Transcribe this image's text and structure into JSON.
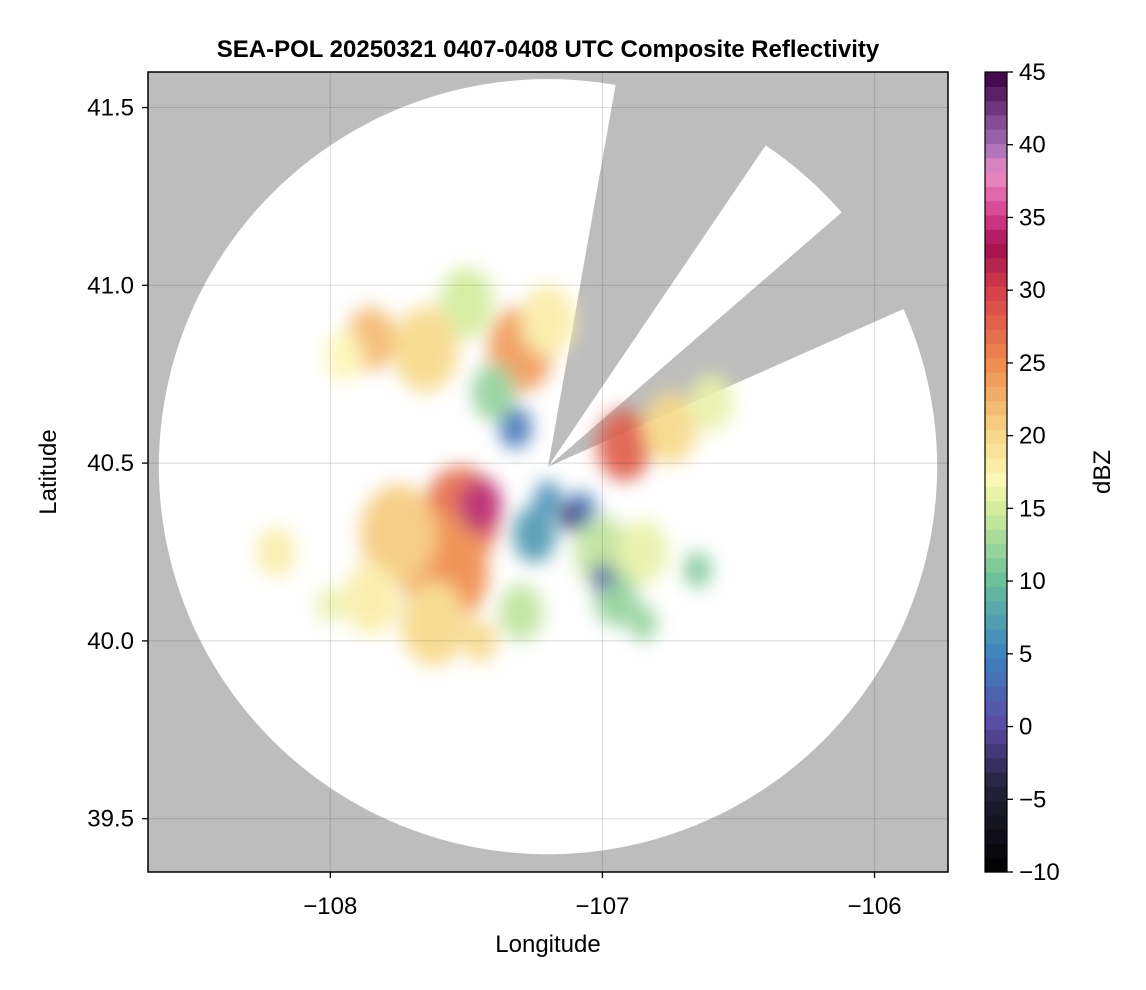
{
  "chart_data": {
    "type": "heatmap",
    "title": "SEA-POL 20250321 0407-0408 UTC Composite Reflectivity",
    "xlabel": "Longitude",
    "ylabel": "Latitude",
    "xlim": [
      -108.67,
      -105.73
    ],
    "ylim": [
      39.35,
      41.6
    ],
    "xticks": [
      -108,
      -107,
      -106
    ],
    "xtick_labels": [
      "−108",
      "−107",
      "−106"
    ],
    "yticks": [
      39.5,
      40.0,
      40.5,
      41.0,
      41.5
    ],
    "ytick_labels": [
      "39.5",
      "40.0",
      "40.5",
      "41.0",
      "41.5"
    ],
    "grid": true,
    "background_color": "#bdbdbd",
    "radar": {
      "center_lon": -107.2,
      "center_lat": 40.49,
      "range_lon": 1.43,
      "range_lat": 1.09,
      "blocked_sectors_deg": [
        [
          10,
          34
        ],
        [
          49,
          66
        ]
      ]
    },
    "colorbar": {
      "label": "dBZ",
      "min": -10,
      "max": 45,
      "step": 2,
      "ticks": [
        -10,
        -5,
        0,
        5,
        10,
        15,
        20,
        25,
        30,
        35,
        40,
        45
      ],
      "tick_labels": [
        "−10",
        "−5",
        "0",
        "5",
        "10",
        "15",
        "20",
        "25",
        "30",
        "35",
        "40",
        "45"
      ],
      "colormap": "spectral-reversed with dark purple top",
      "stops": [
        {
          "v": -10,
          "color": "#000000"
        },
        {
          "v": -4,
          "color": "#25233a"
        },
        {
          "v": 0,
          "color": "#5b4aa3"
        },
        {
          "v": 5,
          "color": "#3f82c0"
        },
        {
          "v": 10,
          "color": "#6abf9a"
        },
        {
          "v": 15,
          "color": "#d4ec9c"
        },
        {
          "v": 17,
          "color": "#fbf7b5"
        },
        {
          "v": 20,
          "color": "#f7d98a"
        },
        {
          "v": 25,
          "color": "#f08c4e"
        },
        {
          "v": 30,
          "color": "#d6404a"
        },
        {
          "v": 33,
          "color": "#a30f4f"
        },
        {
          "v": 35,
          "color": "#d23a8a"
        },
        {
          "v": 38,
          "color": "#eb8cc2"
        },
        {
          "v": 40,
          "color": "#a46fb8"
        },
        {
          "v": 45,
          "color": "#3a0044"
        }
      ]
    },
    "echo_cells": [
      {
        "lon": -107.32,
        "lat": 40.6,
        "r": 0.06,
        "dbz": 4
      },
      {
        "lon": -107.52,
        "lat": 40.35,
        "r": 0.14,
        "dbz": 27
      },
      {
        "lon": -107.58,
        "lat": 40.2,
        "r": 0.16,
        "dbz": 25
      },
      {
        "lon": -107.45,
        "lat": 40.38,
        "r": 0.08,
        "dbz": 34
      },
      {
        "lon": -107.62,
        "lat": 40.05,
        "r": 0.12,
        "dbz": 20
      },
      {
        "lon": -107.75,
        "lat": 40.3,
        "r": 0.14,
        "dbz": 21
      },
      {
        "lon": -107.85,
        "lat": 40.12,
        "r": 0.1,
        "dbz": 18
      },
      {
        "lon": -107.3,
        "lat": 40.82,
        "r": 0.12,
        "dbz": 24
      },
      {
        "lon": -107.2,
        "lat": 40.9,
        "r": 0.1,
        "dbz": 18
      },
      {
        "lon": -107.5,
        "lat": 40.95,
        "r": 0.1,
        "dbz": 15
      },
      {
        "lon": -107.65,
        "lat": 40.82,
        "r": 0.12,
        "dbz": 20
      },
      {
        "lon": -107.85,
        "lat": 40.85,
        "r": 0.09,
        "dbz": 22
      },
      {
        "lon": -107.95,
        "lat": 40.8,
        "r": 0.07,
        "dbz": 17
      },
      {
        "lon": -107.4,
        "lat": 40.7,
        "r": 0.08,
        "dbz": 12
      },
      {
        "lon": -106.92,
        "lat": 40.55,
        "r": 0.1,
        "dbz": 28
      },
      {
        "lon": -106.75,
        "lat": 40.6,
        "r": 0.1,
        "dbz": 20
      },
      {
        "lon": -106.6,
        "lat": 40.67,
        "r": 0.08,
        "dbz": 16
      },
      {
        "lon": -107.08,
        "lat": 40.36,
        "r": 0.06,
        "dbz": 4
      },
      {
        "lon": -107.0,
        "lat": 40.25,
        "r": 0.1,
        "dbz": 14
      },
      {
        "lon": -106.85,
        "lat": 40.25,
        "r": 0.09,
        "dbz": 16
      },
      {
        "lon": -106.95,
        "lat": 40.12,
        "r": 0.08,
        "dbz": 12
      },
      {
        "lon": -107.0,
        "lat": 40.18,
        "r": 0.04,
        "dbz": 1
      },
      {
        "lon": -107.25,
        "lat": 40.3,
        "r": 0.08,
        "dbz": 7
      },
      {
        "lon": -107.3,
        "lat": 40.08,
        "r": 0.08,
        "dbz": 14
      },
      {
        "lon": -107.45,
        "lat": 40.0,
        "r": 0.06,
        "dbz": 20
      },
      {
        "lon": -106.85,
        "lat": 40.05,
        "r": 0.05,
        "dbz": 12
      },
      {
        "lon": -106.65,
        "lat": 40.2,
        "r": 0.05,
        "dbz": 11
      },
      {
        "lon": -108.2,
        "lat": 40.25,
        "r": 0.07,
        "dbz": 18
      },
      {
        "lon": -108.0,
        "lat": 40.1,
        "r": 0.05,
        "dbz": 16
      },
      {
        "lon": -107.2,
        "lat": 40.4,
        "r": 0.05,
        "dbz": 6
      },
      {
        "lon": -107.12,
        "lat": 40.35,
        "r": 0.04,
        "dbz": -2
      }
    ]
  }
}
